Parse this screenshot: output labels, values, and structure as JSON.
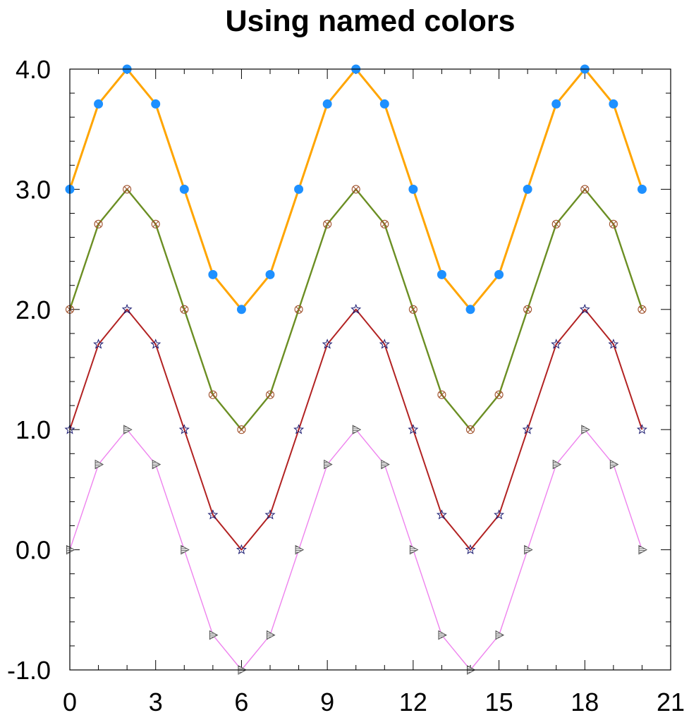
{
  "chart_data": {
    "type": "line",
    "title": "Using named colors",
    "xlabel": "",
    "ylabel": "",
    "xlim": [
      0,
      21
    ],
    "ylim": [
      -1.0,
      4.0
    ],
    "xticks": [
      0,
      3,
      6,
      9,
      12,
      15,
      18,
      21
    ],
    "xtick_labels": [
      "0",
      "3",
      "6",
      "9",
      "12",
      "15",
      "18",
      "21"
    ],
    "yticks": [
      -1.0,
      0.0,
      1.0,
      2.0,
      3.0,
      4.0
    ],
    "ytick_labels": [
      "-1.0",
      "0.0",
      "1.0",
      "2.0",
      "3.0",
      "4.0"
    ],
    "grid": false,
    "x": [
      0,
      1,
      2,
      3,
      4,
      5,
      6,
      7,
      8,
      9,
      10,
      11,
      12,
      13,
      14,
      15,
      16,
      17,
      18,
      19,
      20
    ],
    "series": [
      {
        "values": [
          3.0,
          3.71,
          4.0,
          3.71,
          3.0,
          2.29,
          2.0,
          2.29,
          3.0,
          3.71,
          4.0,
          3.71,
          3.0,
          2.29,
          2.0,
          2.29,
          3.0,
          3.71,
          4.0,
          3.71,
          3.0
        ],
        "line_color": "#ffa500",
        "marker": "filled-circle",
        "marker_color": "#1e90ff"
      },
      {
        "values": [
          2.0,
          2.71,
          3.0,
          2.71,
          2.0,
          1.29,
          1.0,
          1.29,
          2.0,
          2.71,
          3.0,
          2.71,
          2.0,
          1.29,
          1.0,
          1.29,
          2.0,
          2.71,
          3.0,
          2.71,
          2.0
        ],
        "line_color": "#6b8e23",
        "marker": "circle-x",
        "marker_color": "#a0522d"
      },
      {
        "values": [
          1.0,
          1.71,
          2.0,
          1.71,
          1.0,
          0.29,
          0.0,
          0.29,
          1.0,
          1.71,
          2.0,
          1.71,
          1.0,
          0.29,
          0.0,
          0.29,
          1.0,
          1.71,
          2.0,
          1.71,
          1.0
        ],
        "line_color": "#b22222",
        "marker": "star",
        "marker_color": "#191970"
      },
      {
        "values": [
          0.0,
          0.71,
          1.0,
          0.71,
          0.0,
          -0.71,
          -1.0,
          -0.71,
          0.0,
          0.71,
          1.0,
          0.71,
          0.0,
          -0.71,
          -1.0,
          -0.71,
          0.0,
          0.71,
          1.0,
          0.71,
          0.0
        ],
        "line_color": "#ee82ee",
        "marker": "hatched-triangle-right",
        "marker_color": "#555555"
      }
    ]
  }
}
